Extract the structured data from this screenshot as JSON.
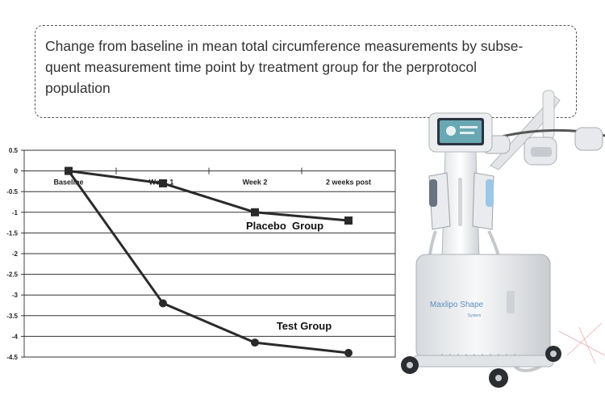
{
  "caption": {
    "line1": "Change from baseline in mean total circumference measurements by subse-",
    "line2": "quent measurement time point by treatment group for the perprotocol",
    "line3": "population"
  },
  "chart_data": {
    "type": "line",
    "categories": [
      "Baseline",
      "Week 1",
      "Week 2",
      "2 weeks post"
    ],
    "ylim": [
      -4.5,
      0.5
    ],
    "yticks": [
      "0.5",
      "0",
      "-0.5",
      "-1",
      "-1.5",
      "-2",
      "-2.5",
      "-3",
      "-3.5",
      "-4",
      "-4.5"
    ],
    "grid": true,
    "series": [
      {
        "name": "Placebo  Group",
        "marker": "square",
        "values": [
          0,
          -0.3,
          -1.0,
          -1.2
        ]
      },
      {
        "name": "Test Group",
        "marker": "circle",
        "values": [
          0,
          -3.2,
          -4.15,
          -4.4
        ]
      }
    ]
  },
  "device": {
    "brand": "Maxlipo Shape",
    "sub": "System",
    "screen_color": "#7fd0d8",
    "accent_color": "#9ec6e6"
  }
}
